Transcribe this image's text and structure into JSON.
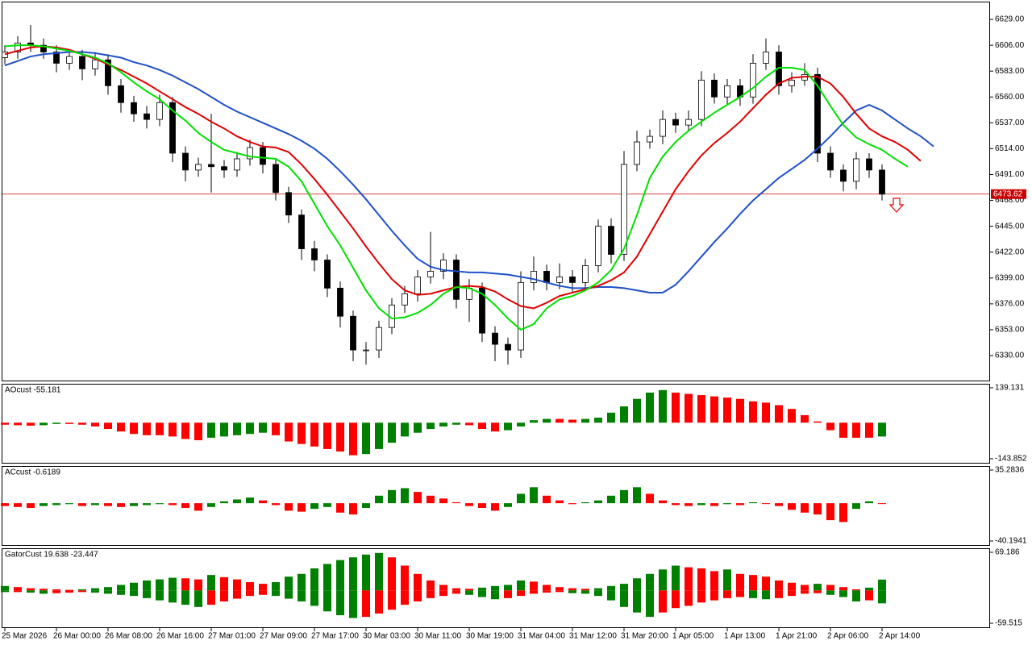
{
  "chart_data": [
    {
      "type": "candlestick",
      "xticks": [
        {
          "value": 0,
          "label": "25 Mar 2026"
        },
        {
          "value": 4,
          "label": "26 Mar 00:00"
        },
        {
          "value": 8,
          "label": "26 Mar 08:00"
        },
        {
          "value": 12,
          "label": "26 Mar 16:00"
        },
        {
          "value": 16,
          "label": "27 Mar 01:00"
        },
        {
          "value": 20,
          "label": "27 Mar 09:00"
        },
        {
          "value": 24,
          "label": "27 Mar 17:00"
        },
        {
          "value": 28,
          "label": "30 Mar 03:00"
        },
        {
          "value": 32,
          "label": "30 Mar 11:00"
        },
        {
          "value": 36,
          "label": "30 Mar 19:00"
        },
        {
          "value": 40,
          "label": "31 Mar 04:00"
        },
        {
          "value": 44,
          "label": "31 Mar 12:00"
        },
        {
          "value": 48,
          "label": "31 Mar 20:00"
        },
        {
          "value": 52,
          "label": "1 Apr 05:00"
        },
        {
          "value": 56,
          "label": "1 Apr 13:00"
        },
        {
          "value": 60,
          "label": "1 Apr 21:00"
        },
        {
          "value": 64,
          "label": "2 Apr 06:00"
        },
        {
          "value": 68,
          "label": "2 Apr 14:00"
        }
      ],
      "ylim": [
        6307.8,
        6644.8
      ],
      "yticks": [
        {
          "value": 6629,
          "label": "6629.00"
        },
        {
          "value": 6606,
          "label": "6606.00"
        },
        {
          "value": 6583,
          "label": "6583.00"
        },
        {
          "value": 6560,
          "label": "6560.00"
        },
        {
          "value": 6537,
          "label": "6537.00"
        },
        {
          "value": 6514,
          "label": "6514.00"
        },
        {
          "value": 6491,
          "label": "6491.00"
        },
        {
          "value": 6468,
          "label": "6468.00"
        },
        {
          "value": 6445,
          "label": "6445.00"
        },
        {
          "value": 6422,
          "label": "6422.00"
        },
        {
          "value": 6399,
          "label": "6399.00"
        },
        {
          "value": 6376,
          "label": "6376.00"
        },
        {
          "value": 6353,
          "label": "6353.00"
        },
        {
          "value": 6330,
          "label": "6330.00"
        }
      ],
      "current_price": 6473.62,
      "current_price_color": "#cc0000",
      "up_color": "#ffffff",
      "down_color": "#000000",
      "open": [
        6595,
        6600,
        6608,
        6606,
        6600,
        6590,
        6596,
        6585,
        6593,
        6570,
        6555,
        6545,
        6540,
        6555,
        6510,
        6495,
        6500,
        6498,
        6495,
        6505,
        6515,
        6500,
        6475,
        6455,
        6425,
        6415,
        6390,
        6365,
        6335,
        6335,
        6355,
        6375,
        6385,
        6400,
        6405,
        6415,
        6380,
        6390,
        6350,
        6340,
        6335,
        6395,
        6405,
        6395,
        6400,
        6395,
        6410,
        6445,
        6420,
        6500,
        6520,
        6525,
        6540,
        6535,
        6540,
        6575,
        6560,
        6570,
        6560,
        6590,
        6600,
        6570,
        6575,
        6580,
        6510,
        6495,
        6485,
        6505,
        6495
      ],
      "high": [
        6606,
        6614,
        6624,
        6612,
        6606,
        6602,
        6602,
        6600,
        6598,
        6576,
        6561,
        6552,
        6562,
        6560,
        6516,
        6506,
        6545,
        6504,
        6511,
        6522,
        6520,
        6505,
        6480,
        6460,
        6432,
        6420,
        6396,
        6370,
        6342,
        6361,
        6381,
        6392,
        6406,
        6440,
        6421,
        6420,
        6398,
        6395,
        6356,
        6346,
        6405,
        6418,
        6411,
        6412,
        6406,
        6416,
        6451,
        6452,
        6512,
        6530,
        6531,
        6548,
        6546,
        6548,
        6583,
        6581,
        6576,
        6576,
        6598,
        6612,
        6606,
        6582,
        6590,
        6586,
        6516,
        6500,
        6511,
        6510,
        6500
      ],
      "low": [
        6589,
        6594,
        6600,
        6594,
        6582,
        6584,
        6575,
        6579,
        6562,
        6546,
        6538,
        6532,
        6534,
        6502,
        6485,
        6489,
        6475,
        6488,
        6489,
        6499,
        6492,
        6468,
        6448,
        6415,
        6405,
        6382,
        6355,
        6325,
        6322,
        6328,
        6349,
        6368,
        6378,
        6394,
        6398,
        6372,
        6360,
        6342,
        6325,
        6322,
        6328,
        6388,
        6388,
        6389,
        6386,
        6388,
        6404,
        6412,
        6414,
        6494,
        6514,
        6518,
        6528,
        6530,
        6534,
        6554,
        6553,
        6552,
        6554,
        6584,
        6562,
        6564,
        6570,
        6502,
        6488,
        6476,
        6478,
        6488,
        6468
      ],
      "close": [
        6600,
        6608,
        6606,
        6600,
        6590,
        6596,
        6585,
        6593,
        6570,
        6555,
        6545,
        6540,
        6555,
        6510,
        6495,
        6500,
        6498,
        6495,
        6505,
        6515,
        6500,
        6475,
        6455,
        6425,
        6415,
        6390,
        6365,
        6335,
        6335,
        6355,
        6375,
        6385,
        6400,
        6405,
        6415,
        6380,
        6390,
        6350,
        6340,
        6335,
        6395,
        6405,
        6395,
        6400,
        6395,
        6410,
        6445,
        6420,
        6500,
        6520,
        6525,
        6540,
        6535,
        6540,
        6575,
        6560,
        6570,
        6560,
        6590,
        6600,
        6570,
        6575,
        6580,
        6510,
        6495,
        6485,
        6505,
        6495,
        6473.62
      ],
      "series": [
        {
          "color": "#1e50c8",
          "values": [
            6588,
            6592,
            6596,
            6598,
            6599,
            6600,
            6600,
            6599,
            6597,
            6595,
            6591,
            6588,
            6584,
            6579,
            6573,
            6567,
            6560,
            6553,
            6547,
            6542,
            6537,
            6532,
            6527,
            6521,
            6514,
            6505,
            6494,
            6482,
            6469,
            6455,
            6441,
            6428,
            6416,
            6409,
            6406,
            6405,
            6404,
            6404,
            6403,
            6402,
            6400,
            6398,
            6395,
            6392,
            6390,
            6390,
            6391,
            6391,
            6390,
            6388,
            6386,
            6386,
            6393,
            6405,
            6418,
            6431,
            6443,
            6456,
            6468,
            6478,
            6488,
            6496,
            6504,
            6514,
            6525,
            6537,
            6548,
            6553,
            6548,
            6540,
            6532,
            6525,
            6516
          ]
        },
        {
          "color": "#e00000",
          "values": [
            6598,
            6601,
            6604,
            6605,
            6604,
            6602,
            6598,
            6594,
            6589,
            6584,
            6578,
            6572,
            6565,
            6558,
            6551,
            6545,
            6538,
            6532,
            6525,
            6520,
            6516,
            6515,
            6511,
            6500,
            6487,
            6473,
            6458,
            6443,
            6427,
            6412,
            6398,
            6388,
            6384,
            6385,
            6388,
            6391,
            6392,
            6391,
            6387,
            6380,
            6374,
            6372,
            6377,
            6383,
            6386,
            6389,
            6392,
            6397,
            6404,
            6418,
            6438,
            6458,
            6478,
            6494,
            6508,
            6519,
            6528,
            6538,
            6550,
            6562,
            6572,
            6577,
            6578,
            6578,
            6572,
            6560,
            6545,
            6532,
            6525,
            6520,
            6513,
            6503,
            null
          ]
        },
        {
          "color": "#00e000",
          "values": [
            6605,
            6606,
            6606,
            6605,
            6603,
            6601,
            6598,
            6595,
            6590,
            6582,
            6573,
            6565,
            6558,
            6548,
            6539,
            6528,
            6520,
            6513,
            6510,
            6507,
            6506,
            6505,
            6498,
            6485,
            6465,
            6445,
            6428,
            6408,
            6388,
            6372,
            6363,
            6364,
            6368,
            6375,
            6385,
            6391,
            6390,
            6385,
            6375,
            6363,
            6353,
            6358,
            6372,
            6380,
            6383,
            6388,
            6395,
            6406,
            6425,
            6455,
            6488,
            6507,
            6520,
            6530,
            6538,
            6546,
            6553,
            6560,
            6568,
            6578,
            6586,
            6586,
            6584,
            6570,
            6552,
            6535,
            6524,
            6518,
            6513,
            6505,
            6498,
            null,
            null
          ]
        }
      ]
    },
    {
      "type": "histogram",
      "title": "AOcust -55.181",
      "ylim": [
        -143.852,
        139.131
      ],
      "yticks": [
        139.131,
        -143.852
      ],
      "up_color": "#008000",
      "down_color": "#ff0000",
      "values": [
        -8,
        -10,
        -12,
        -10,
        -5,
        -5,
        -8,
        -15,
        -25,
        -35,
        -45,
        -50,
        -50,
        -55,
        -65,
        -70,
        -60,
        -55,
        -50,
        -45,
        -40,
        -50,
        -75,
        -85,
        -95,
        -105,
        -115,
        -130,
        -125,
        -105,
        -80,
        -55,
        -40,
        -25,
        -15,
        -8,
        -10,
        -25,
        -35,
        -30,
        -15,
        10,
        15,
        15,
        12,
        15,
        20,
        40,
        65,
        95,
        120,
        130,
        120,
        115,
        110,
        105,
        100,
        95,
        85,
        80,
        70,
        55,
        30,
        5,
        -30,
        -60,
        -60,
        -60,
        -55.181
      ]
    },
    {
      "type": "histogram",
      "title": "ACcust -0.6189",
      "ylim": [
        -40.1941,
        35.2836
      ],
      "yticks": [
        35.2836,
        -40.1941
      ],
      "up_color": "#008000",
      "down_color": "#ff0000",
      "values": [
        -3,
        -4,
        -5,
        -3,
        -2,
        -1,
        -3,
        -2,
        -3,
        -4,
        -3,
        -2,
        -1,
        -2,
        -5,
        -8,
        -4,
        2,
        4,
        6,
        3,
        -2,
        -8,
        -9,
        -6,
        -4,
        -10,
        -12,
        -5,
        8,
        14,
        16,
        12,
        8,
        5,
        1,
        -3,
        -5,
        -8,
        -4,
        10,
        17,
        8,
        3,
        -1,
        1,
        3,
        8,
        14,
        17,
        10,
        3,
        -2,
        -3,
        -2,
        -3,
        -1,
        -2,
        1,
        0,
        -3,
        -7,
        -10,
        -12,
        -18,
        -20,
        -6,
        2,
        -0.6189
      ]
    },
    {
      "type": "gator",
      "title": "GatorCust 19.638 -23.447",
      "ylim": [
        -59.515,
        69.186
      ],
      "yticks": [
        69.186,
        -59.515
      ],
      "up_color": "#008000",
      "down_color": "#ff0000",
      "upper": [
        8,
        6,
        4,
        3,
        2,
        1,
        2,
        4,
        6,
        10,
        14,
        18,
        20,
        23,
        22,
        20,
        28,
        24,
        20,
        15,
        12,
        15,
        25,
        30,
        40,
        48,
        55,
        60,
        65,
        68,
        60,
        45,
        30,
        18,
        10,
        4,
        3,
        5,
        8,
        10,
        18,
        16,
        10,
        6,
        4,
        3,
        4,
        8,
        12,
        22,
        30,
        38,
        45,
        42,
        40,
        35,
        38,
        30,
        28,
        25,
        18,
        14,
        10,
        12,
        10,
        6,
        2,
        5,
        19.638
      ],
      "lower": [
        -3,
        -3,
        -4,
        -6,
        -5,
        -4,
        -3,
        -4,
        -6,
        -8,
        -10,
        -14,
        -18,
        -22,
        -26,
        -30,
        -26,
        -20,
        -15,
        -10,
        -8,
        -10,
        -15,
        -20,
        -28,
        -38,
        -45,
        -50,
        -48,
        -42,
        -35,
        -26,
        -20,
        -14,
        -10,
        -6,
        -8,
        -12,
        -16,
        -14,
        -10,
        -6,
        -4,
        -3,
        -5,
        -6,
        -10,
        -18,
        -30,
        -40,
        -48,
        -40,
        -32,
        -28,
        -22,
        -18,
        -14,
        -12,
        -14,
        -16,
        -14,
        -10,
        -6,
        -5,
        -8,
        -12,
        -20,
        -18,
        -23.447
      ]
    }
  ]
}
